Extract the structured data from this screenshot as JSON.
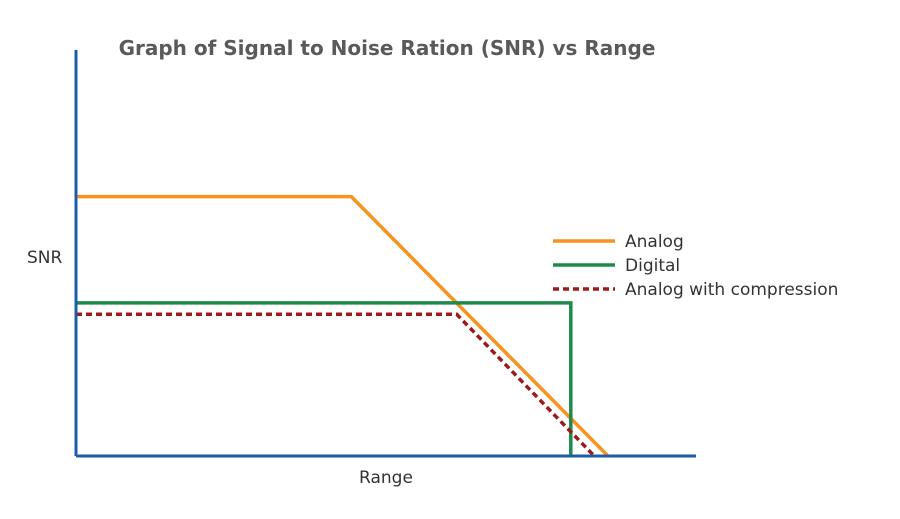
{
  "chart_data": {
    "type": "line",
    "title": "Graph of Signal to Noise Ration (SNR) vs Range",
    "xlabel": "Range",
    "ylabel": "SNR",
    "xlim": [
      0,
      100
    ],
    "ylim": [
      0,
      100
    ],
    "grid": false,
    "legend_position": "right",
    "axis_color": "#1f5ca8",
    "series": [
      {
        "name": "Analog",
        "color": "#f7931e",
        "style": "solid",
        "x": [
          0,
          44.4,
          85.8
        ],
        "y": [
          63.9,
          63.9,
          0
        ]
      },
      {
        "name": "Digital",
        "color": "#1e8a4c",
        "style": "solid",
        "x": [
          0,
          79.8,
          79.8
        ],
        "y": [
          37.7,
          37.7,
          0
        ]
      },
      {
        "name": "Analog with compression",
        "color": "#9b1b1b",
        "style": "dashed",
        "x": [
          0,
          61.4,
          83.6
        ],
        "y": [
          34.9,
          34.9,
          0
        ]
      }
    ]
  }
}
